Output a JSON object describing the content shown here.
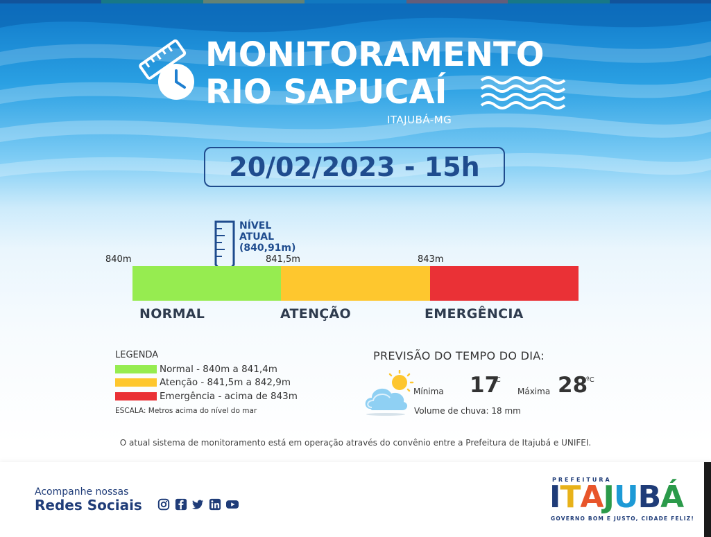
{
  "header": {
    "title_line1": "MONITORAMENTO",
    "title_line2": "RIO SAPUCAÍ",
    "city": "ITAJUBÁ-MG",
    "date_time": "20/02/2023 - 15h"
  },
  "scale": {
    "start_label": "840m",
    "mid_label": "841,5m",
    "high_label": "843m",
    "current_level_line1": "NÍVEL",
    "current_level_line2": "ATUAL",
    "current_level_value": "(840,91m)",
    "current_level_m": 840.91,
    "levels": [
      {
        "name": "NORMAL",
        "color": "#96ec50"
      },
      {
        "name": "ATENÇÃO",
        "color": "#fec72e"
      },
      {
        "name": "EMERGÊNCIA",
        "color": "#ea3136"
      }
    ]
  },
  "legend": {
    "title": "LEGENDA",
    "items": [
      {
        "text": "Normal - 840m a 841,4m",
        "color": "#96ec50"
      },
      {
        "text": "Atenção - 841,5m a 842,9m",
        "color": "#fec72e"
      },
      {
        "text": "Emergência - acima de 843m",
        "color": "#ea3136"
      }
    ],
    "escala": "ESCALA: Metros acima do nível do mar"
  },
  "forecast": {
    "title": "PREVISÃO DO TEMPO DO DIA:",
    "icon": "partly-cloudy-icon",
    "min_label": "Mínima",
    "min_value": "17",
    "max_label": "Máxima",
    "max_value": "28",
    "unit": "ºC",
    "rain": "Volume de chuva: 18 mm"
  },
  "convenio": "O atual sistema de monitoramento está em operação através do convênio entre a Prefeitura de Itajubá e UNIFEI.",
  "footer": {
    "follow_line1": "Acompanhe nossas",
    "follow_line2": "Redes Sociais",
    "social_icons": [
      "instagram-icon",
      "facebook-icon",
      "twitter-icon",
      "linkedin-icon",
      "youtube-icon"
    ],
    "brand_top": "PREFEITURA",
    "brand_letters": [
      "I",
      "T",
      "A",
      "J",
      "U",
      "B",
      "Á"
    ],
    "brand_colors": [
      "#1f3c78",
      "#e8b21a",
      "#e8552a",
      "#2b9a4a",
      "#1d9ad6",
      "#1f3c78",
      "#2b9a4a"
    ],
    "slogan": "GOVERNO BOM E JUSTO, CIDADE FELIZ!"
  },
  "colors": {
    "top_stripe": [
      "#1f3c78",
      "#2b9a4a",
      "#e8b21a",
      "#1d9ad6",
      "#e8552a",
      "#2b9a4a",
      "#1f3c78"
    ]
  }
}
